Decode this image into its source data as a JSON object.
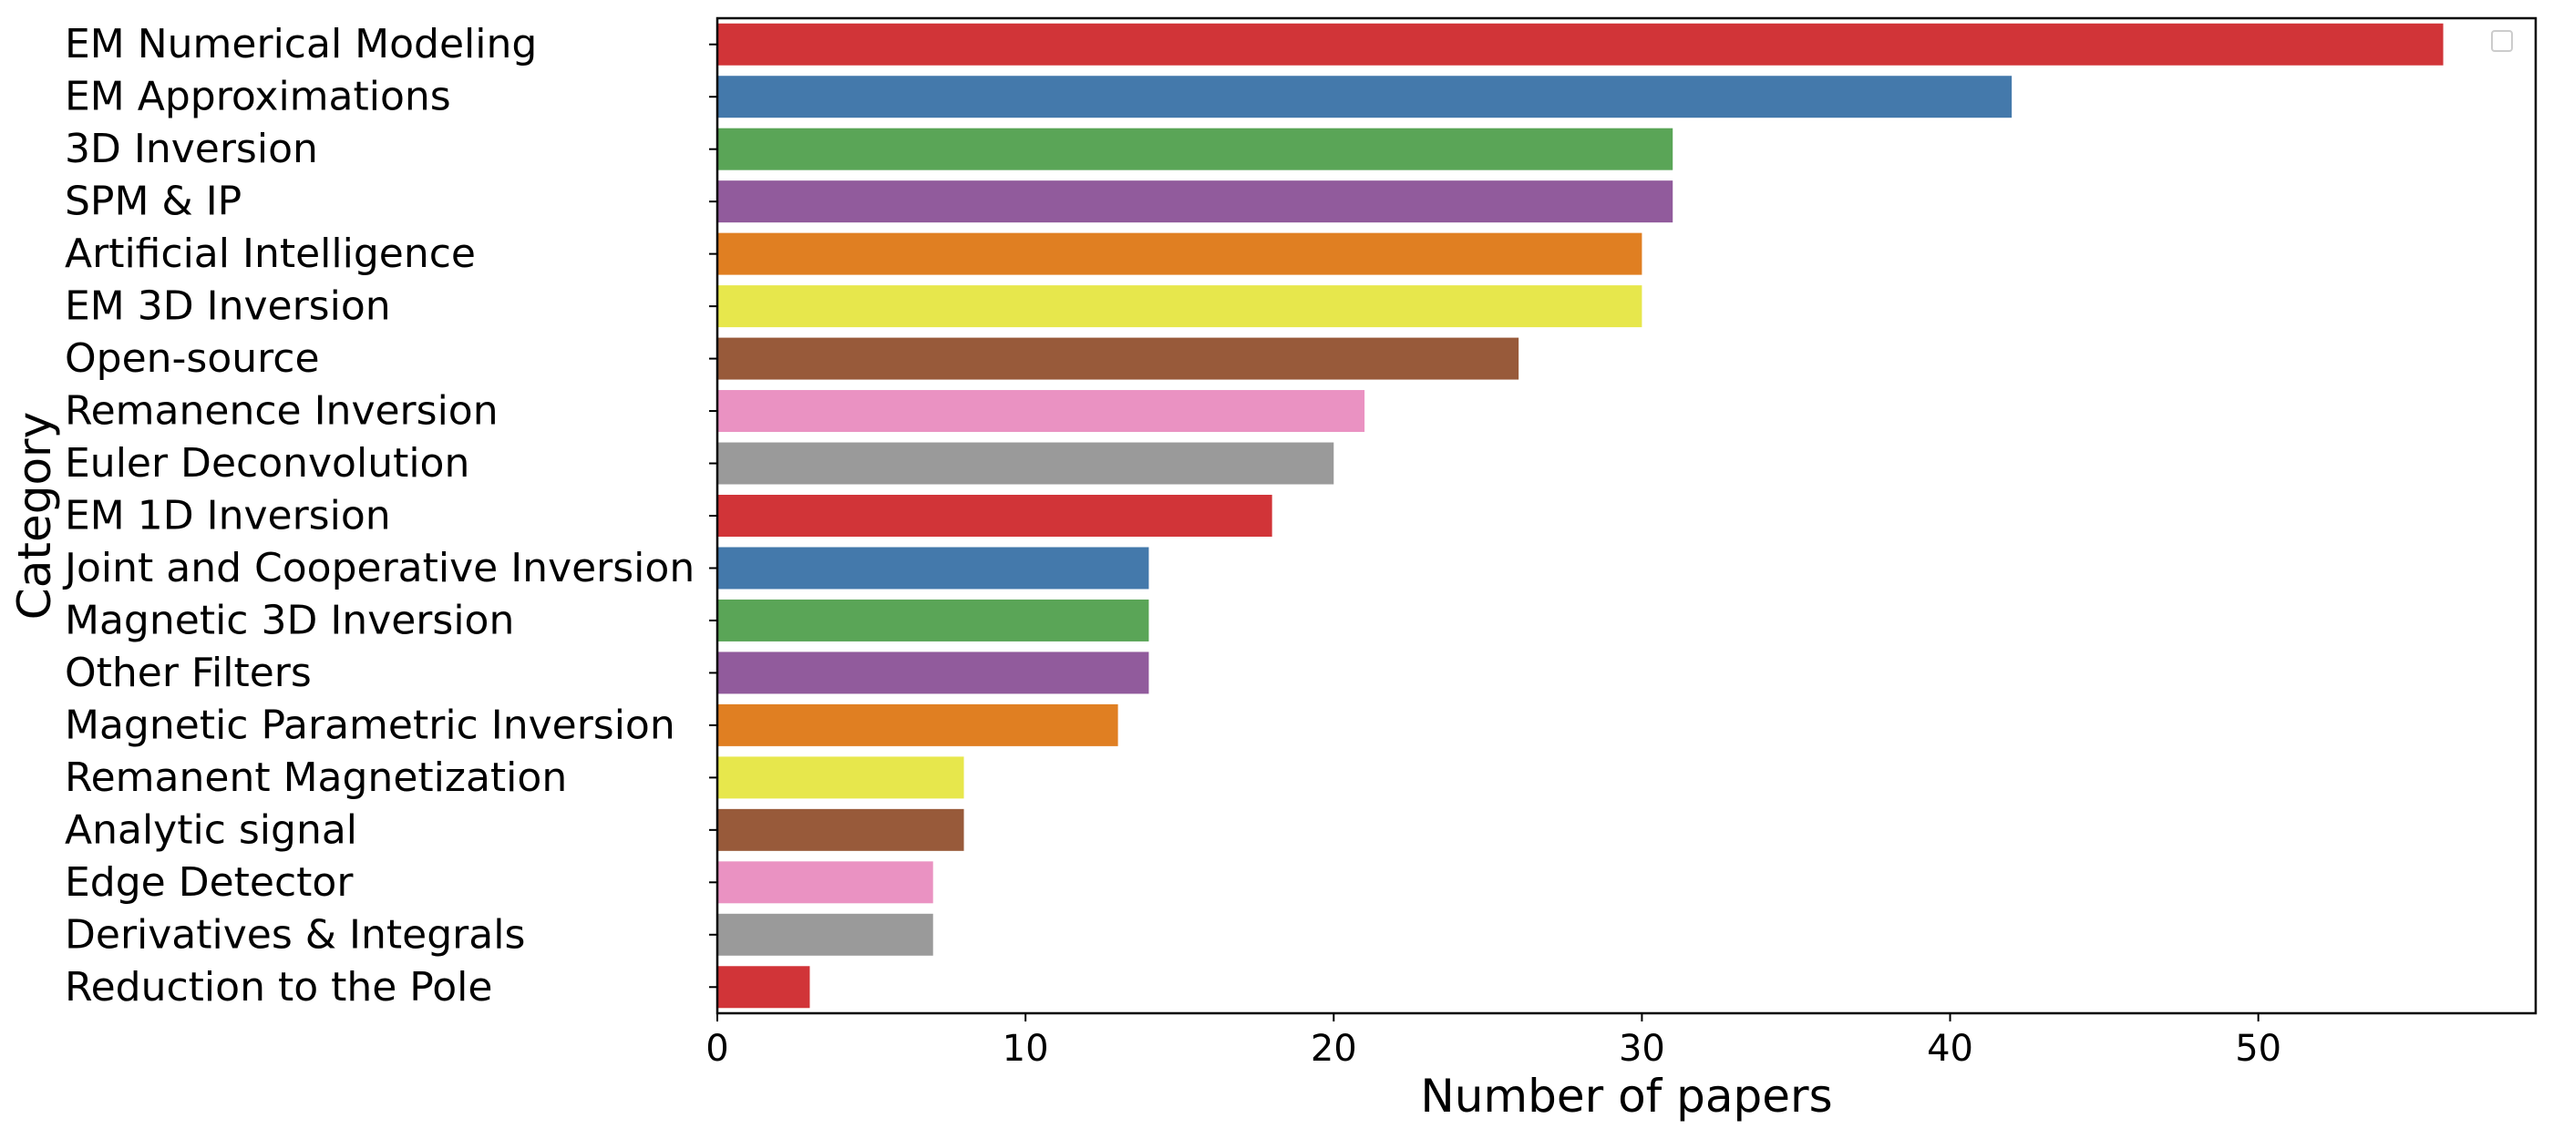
{
  "chart_data": {
    "type": "bar",
    "orientation": "horizontal",
    "xlabel": "Number of papers",
    "ylabel": "Category",
    "xlim": [
      0,
      59
    ],
    "xticks": [
      0,
      10,
      20,
      30,
      40,
      50
    ],
    "grid": false,
    "legend": "top-right",
    "categories": [
      "EM Numerical Modeling",
      "EM Approximations",
      "3D Inversion",
      "SPM & IP",
      "Artificial Intelligence",
      "EM 3D Inversion",
      "Open-source",
      "Remanence Inversion",
      "Euler Deconvolution",
      "EM 1D Inversion",
      "Joint and Cooperative Inversion",
      "Magnetic 3D Inversion",
      "Other Filters",
      "Magnetic Parametric Inversion",
      "Remanent Magnetization",
      "Analytic signal",
      "Edge Detector",
      "Derivatives & Integrals",
      "Reduction to the Pole"
    ],
    "values": [
      56,
      42,
      31,
      31,
      30,
      30,
      26,
      21,
      20,
      18,
      14,
      14,
      14,
      13,
      8,
      8,
      7,
      7,
      3
    ],
    "colors": [
      "#d13438",
      "#4479ab",
      "#5aa557",
      "#915b9c",
      "#e07f22",
      "#e7e74c",
      "#985a3a",
      "#ea92c2",
      "#9a9a9a",
      "#d13438",
      "#4479ab",
      "#5aa557",
      "#915b9c",
      "#e07f22",
      "#e7e74c",
      "#985a3a",
      "#ea92c2",
      "#9a9a9a",
      "#d13438"
    ]
  }
}
